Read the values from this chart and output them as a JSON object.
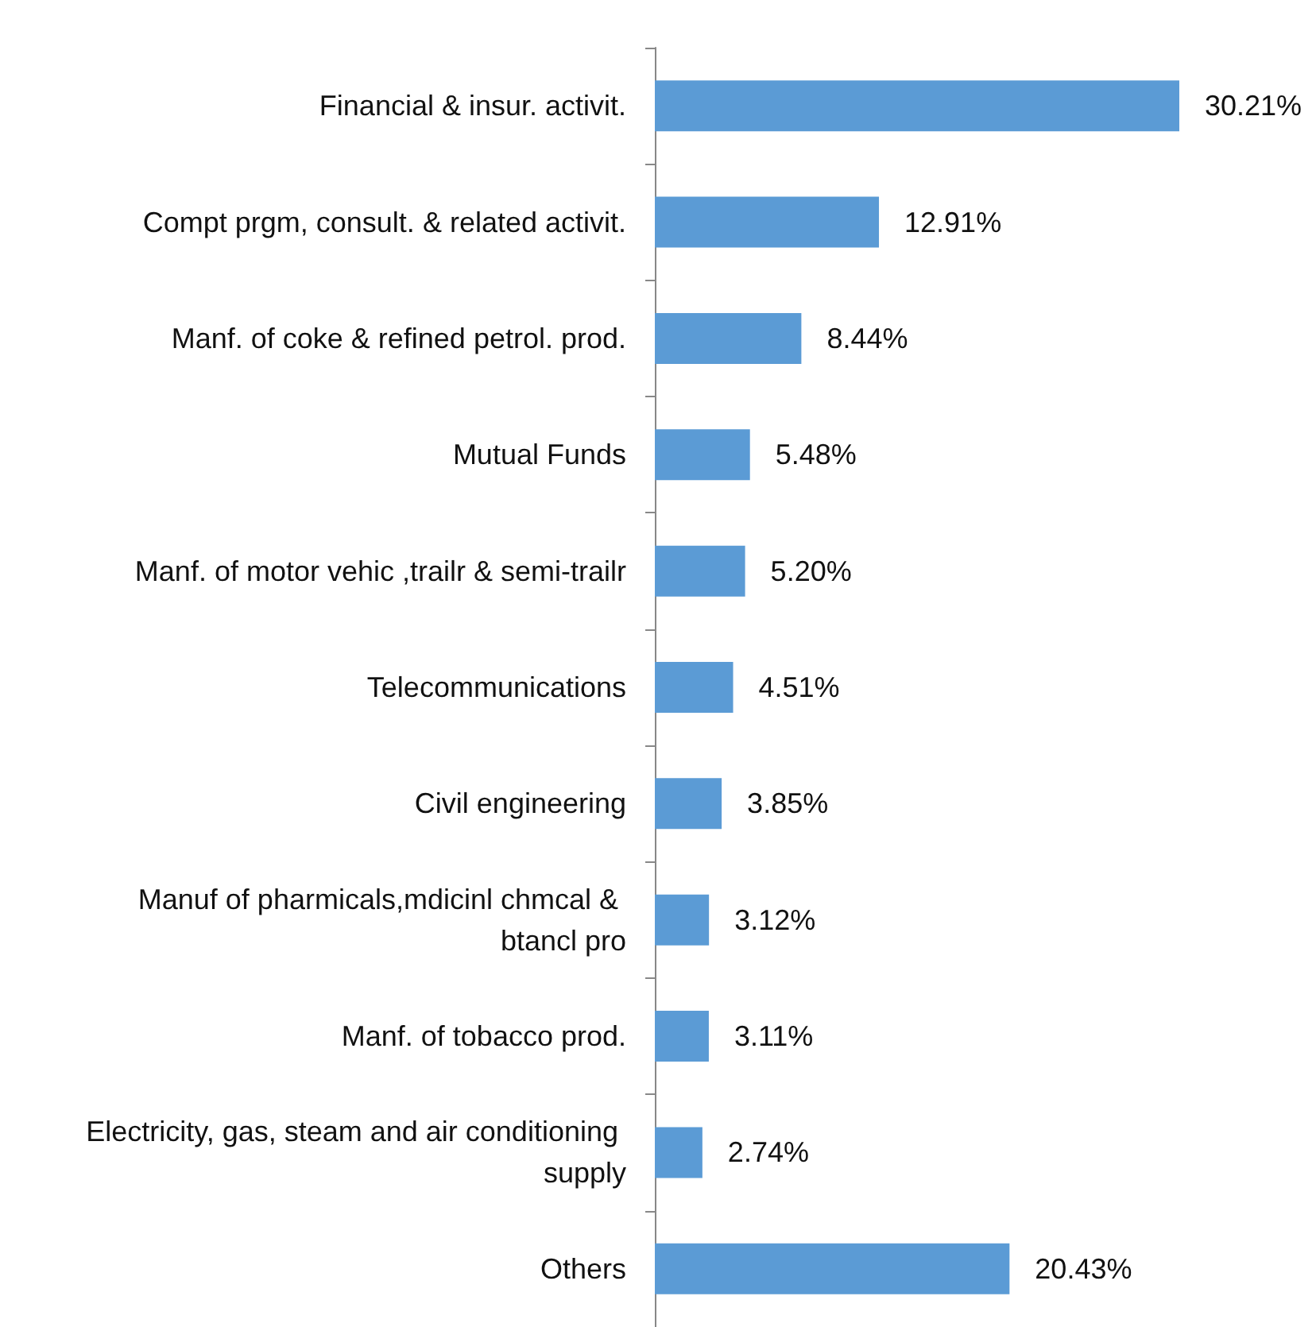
{
  "chart_data": {
    "type": "bar",
    "orientation": "horizontal",
    "tick_labels": "y",
    "categories": [
      "Financial & insur. activit.",
      "Compt prgm, consult. & related activit.",
      "Manf. of coke & refined petrol. prod.",
      "Mutual Funds",
      "Manf. of motor vehic ,trailr & semi-trailr",
      "Telecommunications",
      "Civil engineering",
      "Manuf of pharmicals,mdicinl chmcal & btancl pro",
      "Manf. of tobacco prod.",
      "Electricity, gas, steam and air conditioning supply",
      "Others"
    ],
    "values": [
      30.21,
      12.91,
      8.44,
      5.48,
      5.2,
      4.51,
      3.85,
      3.12,
      3.11,
      2.74,
      20.43
    ],
    "value_labels": [
      "30.21%",
      "12.91%",
      "8.44%",
      "5.48%",
      "5.20%",
      "4.51%",
      "3.85%",
      "3.12%",
      "3.11%",
      "2.74%",
      "20.43%"
    ],
    "color": "#5b9bd5"
  }
}
